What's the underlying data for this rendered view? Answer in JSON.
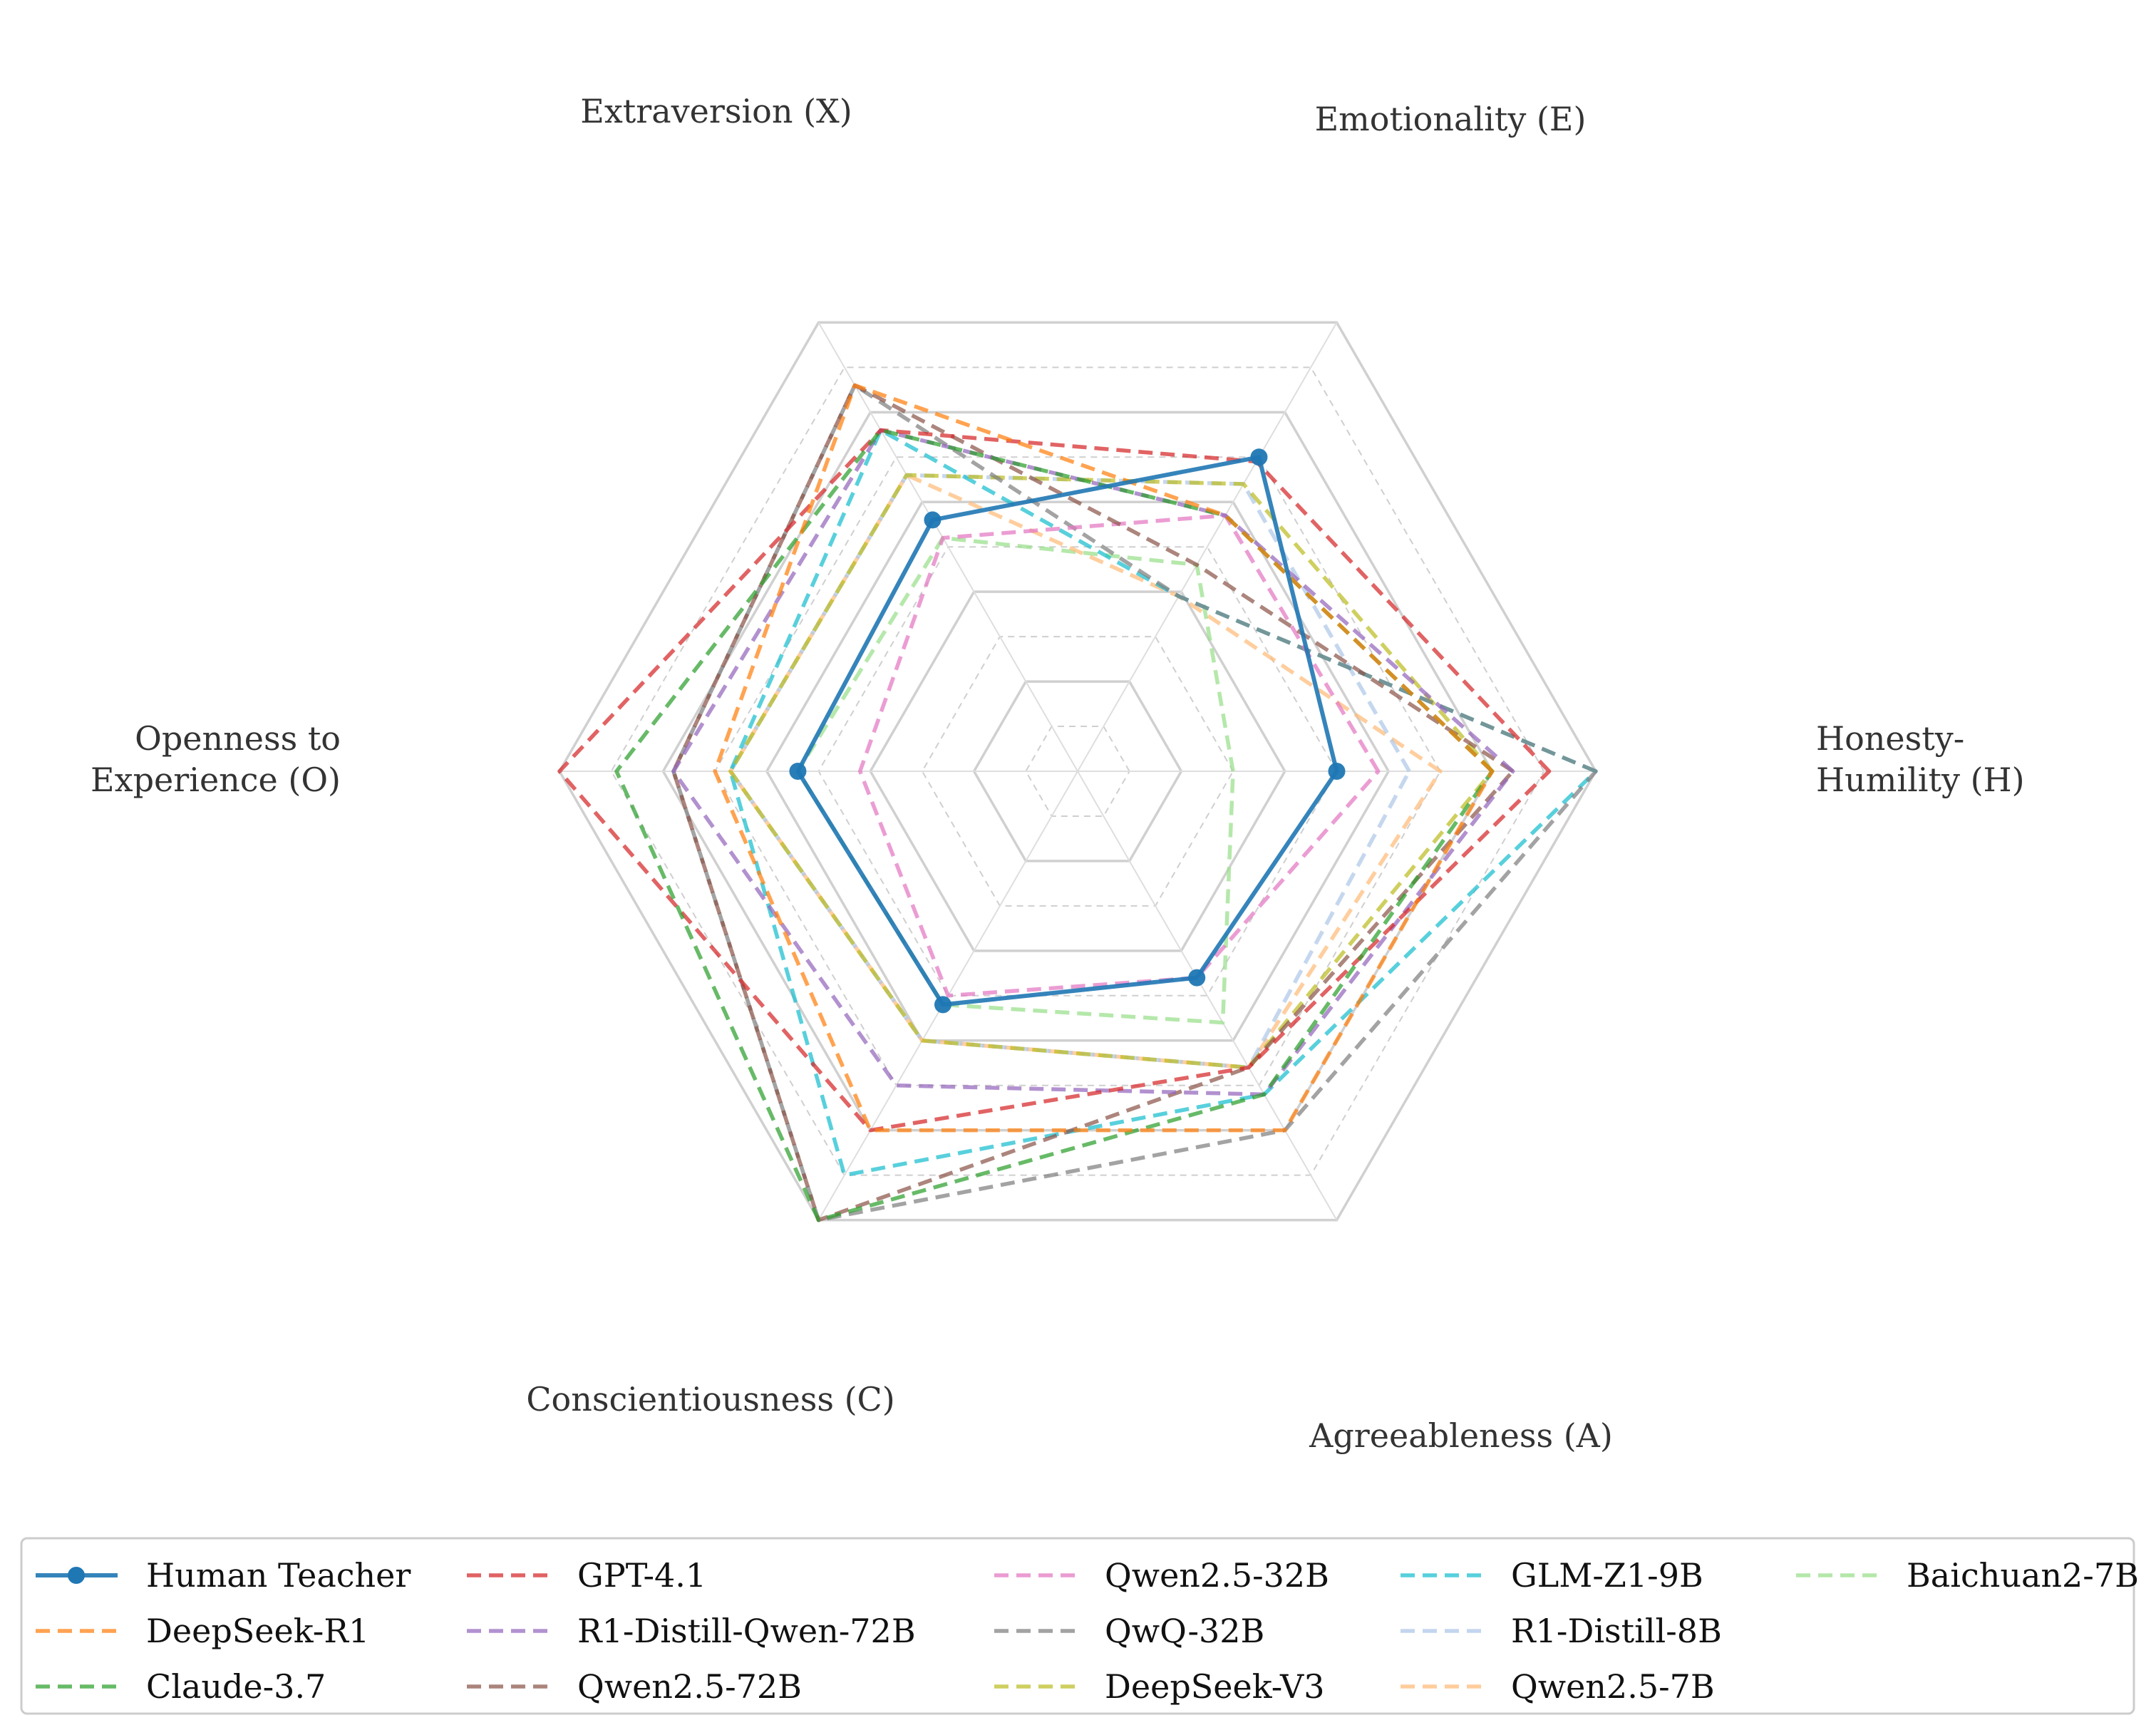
{
  "chart_data": {
    "type": "radar",
    "axes": [
      {
        "key": "H",
        "lines": [
          "Honesty-",
          "Humility (H)"
        ]
      },
      {
        "key": "E",
        "lines": [
          "Emotionality (E)"
        ]
      },
      {
        "key": "X",
        "lines": [
          "Extraversion (X)"
        ]
      },
      {
        "key": "O",
        "lines": [
          "Openness to",
          "Experience (O)"
        ]
      },
      {
        "key": "C",
        "lines": [
          "Conscientiousness (C)"
        ]
      },
      {
        "key": "A",
        "lines": [
          "Agreeableness (A)"
        ]
      }
    ],
    "range": [
      0,
      1
    ],
    "grid_levels": [
      0.1,
      0.2,
      0.3,
      0.4,
      0.5,
      0.6,
      0.7,
      0.8,
      0.9,
      1.0
    ],
    "grid": true,
    "legend_position": "bottom",
    "series": [
      {
        "name": "Human Teacher",
        "color": "#1f77b4",
        "style": "solid-marker",
        "values": [
          0.5,
          0.7,
          0.56,
          0.54,
          0.52,
          0.46
        ]
      },
      {
        "name": "DeepSeek-R1",
        "color": "#ff7f0e",
        "style": "dashed",
        "values": [
          0.8,
          0.57,
          0.86,
          0.7,
          0.8,
          0.8
        ]
      },
      {
        "name": "Claude-3.7",
        "color": "#2ca02c",
        "style": "dashed",
        "values": [
          0.8,
          0.57,
          0.76,
          0.89,
          1.0,
          0.72
        ]
      },
      {
        "name": "GPT-4.1",
        "color": "#d62728",
        "style": "dashed",
        "values": [
          0.91,
          0.69,
          0.76,
          1.0,
          0.8,
          0.66
        ]
      },
      {
        "name": "R1-Distill-Qwen-72B",
        "color": "#9467bd",
        "style": "dashed",
        "values": [
          0.84,
          0.57,
          0.76,
          0.78,
          0.7,
          0.72
        ]
      },
      {
        "name": "Qwen2.5-72B",
        "color": "#8c564b",
        "style": "dashed",
        "values": [
          0.84,
          0.46,
          0.86,
          0.78,
          1.0,
          0.66
        ]
      },
      {
        "name": "Qwen2.5-32B",
        "color": "#e377c2",
        "style": "dashed",
        "values": [
          0.58,
          0.57,
          0.52,
          0.42,
          0.5,
          0.46
        ]
      },
      {
        "name": "QwQ-32B",
        "color": "#7f7f7f",
        "style": "dashed",
        "values": [
          1.0,
          0.39,
          0.86,
          0.78,
          1.0,
          0.8
        ]
      },
      {
        "name": "DeepSeek-V3",
        "color": "#bcbd22",
        "style": "dashed",
        "values": [
          0.8,
          0.64,
          0.66,
          0.67,
          0.6,
          0.66
        ]
      },
      {
        "name": "GLM-Z1-9B",
        "color": "#17becf",
        "style": "dashed",
        "values": [
          1.0,
          0.39,
          0.76,
          0.67,
          0.9,
          0.72
        ]
      },
      {
        "name": "R1-Distill-8B",
        "color": "#aec7e8",
        "style": "dashed",
        "values": [
          0.64,
          0.64,
          0.66,
          0.67,
          0.6,
          0.66
        ]
      },
      {
        "name": "Qwen2.5-7B",
        "color": "#ffbb78",
        "style": "dashed",
        "values": [
          0.7,
          0.39,
          0.66,
          0.67,
          0.6,
          0.66
        ]
      },
      {
        "name": "Baichuan2-7B",
        "color": "#98df8a",
        "style": "dashed",
        "values": [
          0.3,
          0.46,
          0.52,
          0.54,
          0.52,
          0.56
        ]
      }
    ]
  }
}
